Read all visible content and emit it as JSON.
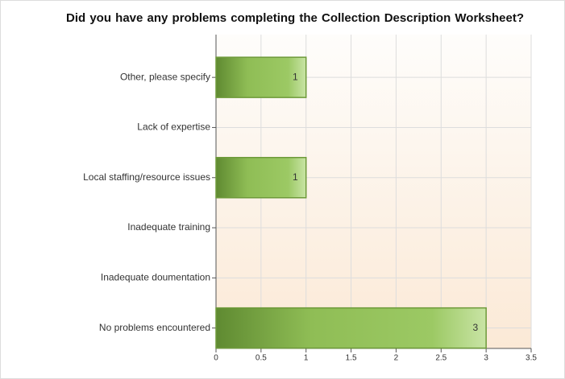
{
  "chart_data": {
    "type": "bar",
    "orientation": "horizontal",
    "title": "Did you have any problems completing the Collection Description Worksheet?",
    "categories": [
      "Other, please specify",
      "Lack of expertise",
      "Local staffing/resource issues",
      "Inadequate training",
      "Inadequate doumentation",
      "No problems encountered"
    ],
    "values": [
      1,
      0,
      1,
      0,
      0,
      3
    ],
    "color": "#8fbd55",
    "xlim": [
      0,
      3.5
    ],
    "xticks": [
      0,
      0.5,
      1,
      1.5,
      2,
      2.5,
      3,
      3.5
    ],
    "grid": true
  }
}
